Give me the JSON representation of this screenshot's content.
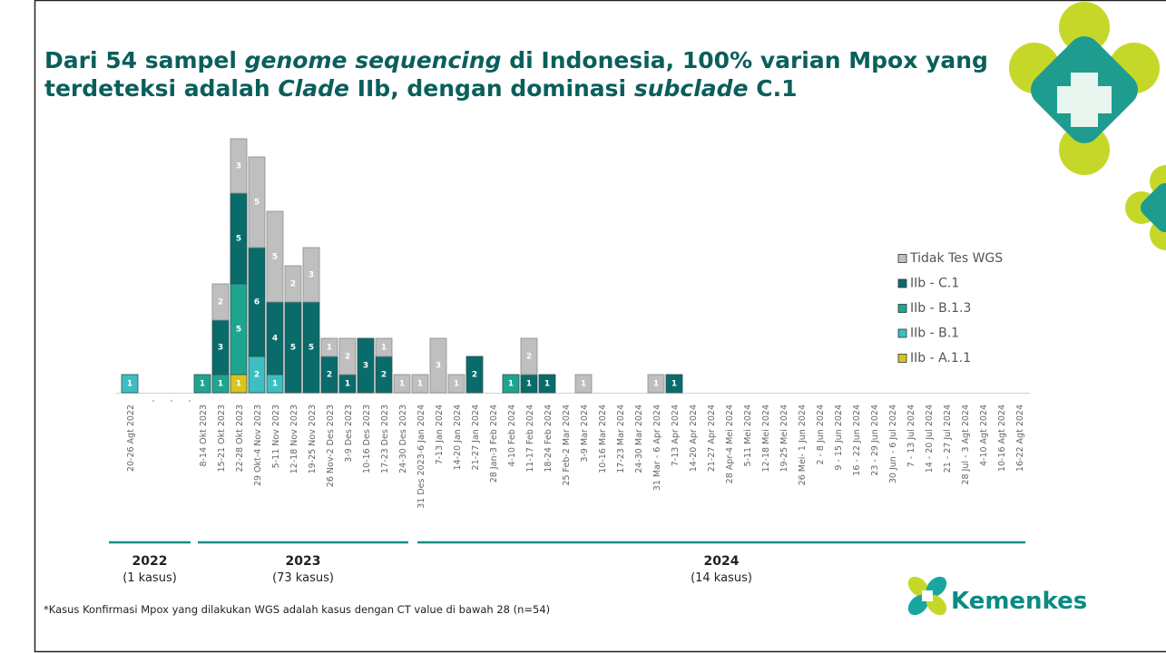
{
  "title": {
    "parts": [
      {
        "text": "Dari 54 sampel ",
        "italic": false,
        "line": 1
      },
      {
        "text": "genome sequencing",
        "italic": true,
        "line": 1
      },
      {
        "text": " di Indonesia, 100% varian Mpox yang",
        "italic": false,
        "line": 1
      },
      {
        "text": "terdeteksi adalah ",
        "italic": false,
        "line": 2
      },
      {
        "text": "Clade",
        "italic": true,
        "line": 2
      },
      {
        "text": " IIb, dengan dominasi ",
        "italic": false,
        "line": 2
      },
      {
        "text": "subclade",
        "italic": true,
        "line": 2
      },
      {
        "text": " C.1",
        "italic": false,
        "line": 2
      }
    ]
  },
  "chart_data": {
    "type": "stacked-bar",
    "categories": [
      "20-26 Agt 2022",
      null,
      null,
      null,
      "8-14 Okt 2023",
      "15-21 Okt 2023",
      "22-28 Okt 2023",
      "29 Okt-4 Nov 2023",
      "5-11 Nov 2023",
      "12-18 Nov 2023",
      "19-25 Nov 2023",
      "26 Nov-2 Des 2023",
      "3-9 Des 2023",
      "10-16 Des 2023",
      "17-23 Des 2023",
      "24-30 Des 2023",
      "31 Des 2023-6 Jan 2024",
      "7-13 Jan 2024",
      "14-20 Jan 2024",
      "21-27 Jan 2024",
      "28 Jan-3 Feb 2024",
      "4-10 Feb 2024",
      "11-17 Feb 2024",
      "18-24 Feb 2024",
      "25 Feb-2 Mar 2024",
      "3-9 Mar 2024",
      "10-16 Mar 2024",
      "17-23 Mar 2024",
      "24-30 Mar 2024",
      "31 Mar - 6 Apr 2024",
      "7-13 Apr 2024",
      "14-20 Apr 2024",
      "21-27 Apr 2024",
      "28 Apr-4 Mei 2024",
      "5-11 Mei 2024",
      "12-18 Mei 2024",
      "19-25 Mei 2024",
      "26 Mei- 1 Jun 2024",
      "2 - 8 Jun 2024",
      "9 - 15 Jun 2024",
      "16 - 22 Jun 2024",
      "23 - 29 Jun 2024",
      "30 Jun - 6 Jul 2024",
      "7 - 13 Jul 2024",
      "14 - 20 Jul 2024",
      "21 - 27 Jul 2024",
      "28 Jul - 3 Agt 2024",
      "4-10 Agt 2024",
      "10-16 Agt 2024",
      "16-22 Agt 2024"
    ],
    "series": [
      {
        "name": "IIb - A.1.1",
        "color": "#d8c41c",
        "values": [
          null,
          null,
          null,
          null,
          null,
          null,
          1,
          null,
          null,
          null,
          null,
          null,
          null,
          null,
          null,
          null,
          null,
          null,
          null,
          null,
          null,
          null,
          null,
          null,
          null,
          null,
          null,
          null,
          null,
          null,
          null,
          null,
          null,
          null,
          null,
          null,
          null,
          null,
          null,
          null,
          null,
          null,
          null,
          null,
          null,
          null,
          null,
          null,
          null,
          null
        ]
      },
      {
        "name": "IIb - B.1",
        "color": "#3dbfc2",
        "values": [
          1,
          null,
          null,
          null,
          null,
          null,
          null,
          2,
          1,
          null,
          null,
          null,
          null,
          null,
          null,
          null,
          null,
          null,
          null,
          null,
          null,
          null,
          null,
          null,
          null,
          null,
          null,
          null,
          null,
          null,
          null,
          null,
          null,
          null,
          null,
          null,
          null,
          null,
          null,
          null,
          null,
          null,
          null,
          null,
          null,
          null,
          null,
          null,
          null,
          null
        ]
      },
      {
        "name": "IIb - B.1.3",
        "color": "#1ea58f",
        "values": [
          null,
          null,
          null,
          null,
          1,
          1,
          5,
          null,
          null,
          null,
          null,
          null,
          null,
          null,
          null,
          null,
          null,
          null,
          null,
          null,
          null,
          1,
          null,
          null,
          null,
          null,
          null,
          null,
          null,
          null,
          null,
          null,
          null,
          null,
          null,
          null,
          null,
          null,
          null,
          null,
          null,
          null,
          null,
          null,
          null,
          null,
          null,
          null,
          null,
          null
        ]
      },
      {
        "name": "IIb - C.1",
        "color": "#0a6b6b",
        "values": [
          null,
          null,
          null,
          null,
          null,
          3,
          5,
          6,
          4,
          5,
          5,
          2,
          1,
          3,
          2,
          null,
          null,
          null,
          null,
          2,
          null,
          null,
          1,
          1,
          null,
          null,
          null,
          null,
          null,
          null,
          1,
          null,
          null,
          null,
          null,
          null,
          null,
          null,
          null,
          null,
          null,
          null,
          null,
          null,
          null,
          null,
          null,
          null,
          null,
          null
        ]
      },
      {
        "name": "Tidak Tes WGS",
        "color": "#bfbfbf",
        "values": [
          null,
          null,
          null,
          null,
          null,
          2,
          3,
          5,
          5,
          2,
          3,
          1,
          2,
          null,
          1,
          1,
          1,
          3,
          1,
          null,
          null,
          null,
          2,
          null,
          null,
          1,
          null,
          null,
          null,
          1,
          null,
          null,
          null,
          null,
          null,
          null,
          null,
          null,
          null,
          null,
          null,
          null,
          null,
          null,
          null,
          null,
          null,
          null,
          null,
          null
        ]
      }
    ]
  },
  "timeline": [
    {
      "year": "2022",
      "count": "(1 kasus)"
    },
    {
      "year": "2023",
      "count": "(73 kasus)"
    },
    {
      "year": "2024",
      "count": "(14 kasus)"
    }
  ],
  "footnote": "*Kasus Konfirmasi Mpox yang dilakukan WGS adalah kasus dengan CT value di bawah 28 (n=54)",
  "logo": "Kemenkes"
}
